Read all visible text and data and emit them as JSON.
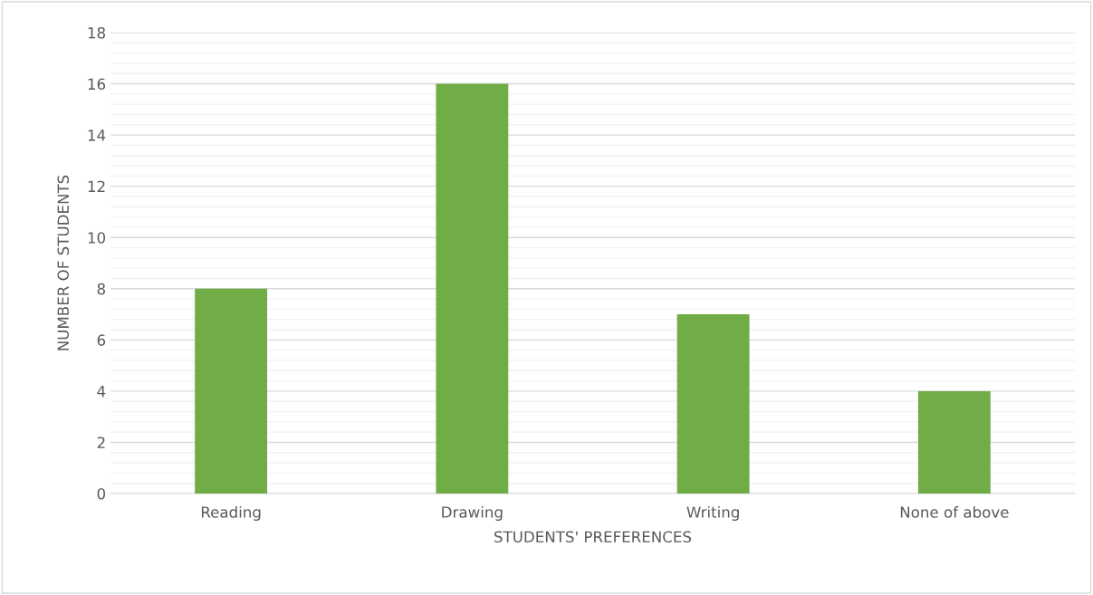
{
  "chart_data": {
    "type": "bar",
    "xlabel": "STUDENTS' PREFERENCES",
    "ylabel": "NUMBER OF STUDENTS",
    "categories": [
      "Reading",
      "Drawing",
      "Writing",
      "None of above"
    ],
    "values": [
      8,
      16,
      7,
      4
    ],
    "color": "#70ad47",
    "ylim": [
      0,
      18
    ],
    "yticks": [
      0,
      2,
      4,
      6,
      8,
      10,
      12,
      14,
      16,
      18
    ],
    "grid": "y"
  }
}
